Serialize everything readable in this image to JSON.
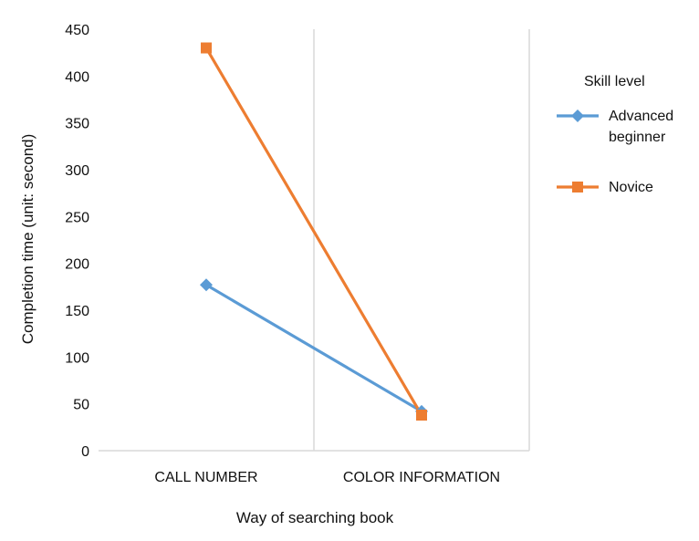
{
  "chart_data": {
    "type": "line",
    "categories": [
      "CALL NUMBER",
      "COLOR INFORMATION"
    ],
    "series": [
      {
        "name": "Advanced beginner",
        "name_lines": [
          "Advanced",
          "beginner"
        ],
        "values": [
          177,
          42
        ],
        "color": "#5b9bd5",
        "marker": "diamond"
      },
      {
        "name": "Novice",
        "name_lines": [
          "Novice"
        ],
        "values": [
          430,
          38
        ],
        "color": "#ed7d31",
        "marker": "square"
      }
    ],
    "xlabel": "Way of searching book",
    "ylabel": "Completion time (unit: second)",
    "ylim": [
      0,
      450
    ],
    "yticks": [
      0,
      50,
      100,
      150,
      200,
      250,
      300,
      350,
      400,
      450
    ],
    "legend_title": "Skill level",
    "legend_position": "right",
    "grid": false,
    "category_separators": true
  }
}
